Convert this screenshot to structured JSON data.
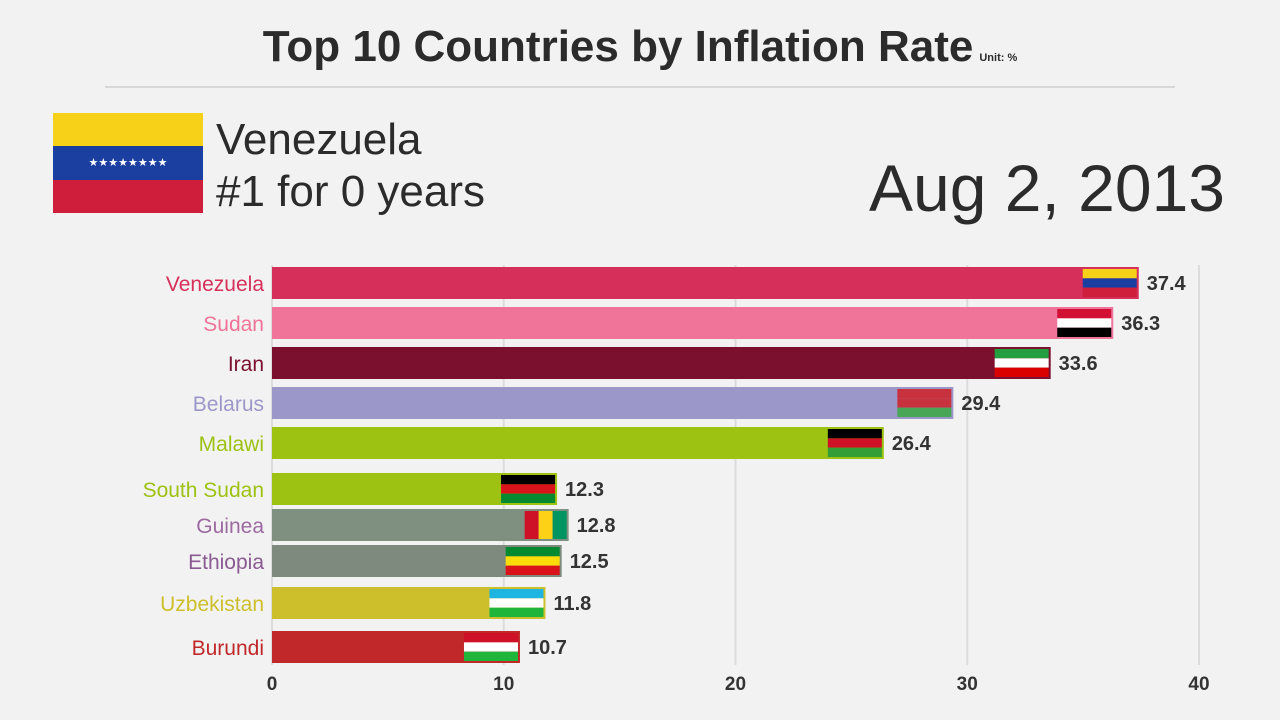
{
  "header": {
    "title": "Top 10 Countries by Inflation Rate",
    "unit": "Unit: %",
    "leader_name": "Venezuela",
    "leader_streak": "#1 for 0 years",
    "date": "Aug 2, 2013"
  },
  "chart_data": {
    "type": "bar",
    "orientation": "horizontal",
    "title": "Top 10 Countries by Inflation Rate",
    "unit": "%",
    "xlim": [
      0,
      40
    ],
    "xticks": [
      0,
      10,
      20,
      30,
      40
    ],
    "grid": true,
    "categories": [
      "Venezuela",
      "Sudan",
      "Iran",
      "Belarus",
      "Malawi",
      "South Sudan",
      "Guinea",
      "Ethiopia",
      "Uzbekistan",
      "Burundi"
    ],
    "values": [
      37.4,
      36.3,
      33.6,
      29.4,
      26.4,
      12.3,
      12.8,
      12.5,
      11.8,
      10.7
    ],
    "value_labels": [
      "37.4",
      "36.3",
      "33.6",
      "29.4",
      "26.4",
      "12.3",
      "12.8",
      "12.5",
      "11.8",
      "10.7"
    ],
    "colors": [
      "#d6305a",
      "#f07399",
      "#7a0f2e",
      "#9c97c9",
      "#9dc212",
      "#9dc212",
      "#7f9080",
      "#7f8a7f",
      "#cdbf2c",
      "#c0282a"
    ]
  }
}
